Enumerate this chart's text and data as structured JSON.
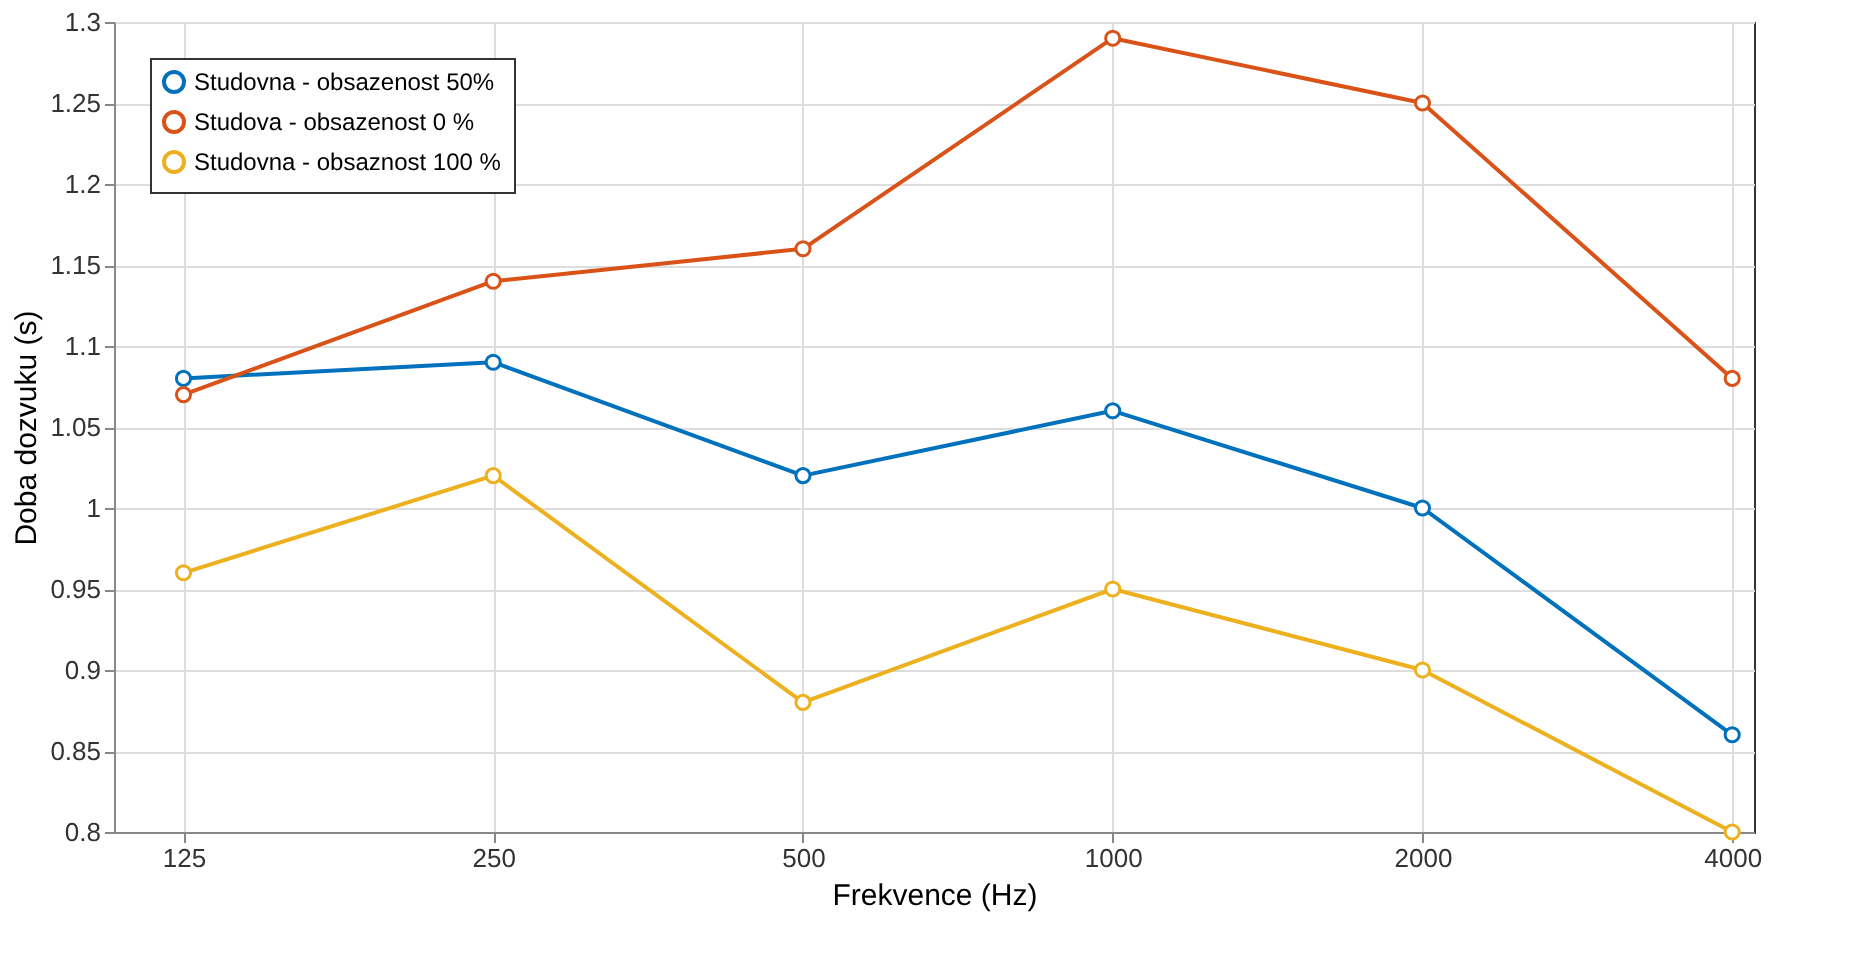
{
  "chart_data": {
    "type": "line",
    "xlabel": "Frekvence (Hz)",
    "ylabel": "Doba dozvuku (s)",
    "x": [
      125,
      250,
      500,
      1000,
      2000,
      4000
    ],
    "series": [
      {
        "name": "Studovna - obsazenost 50%",
        "color": "#0072bd",
        "values": [
          1.08,
          1.09,
          1.02,
          1.06,
          1.0,
          0.86
        ]
      },
      {
        "name": "Studova - obsazenost 0 %",
        "color": "#d95319",
        "values": [
          1.07,
          1.14,
          1.16,
          1.29,
          1.25,
          1.08
        ]
      },
      {
        "name": "Studovna - obsaznost 100 %",
        "color": "#edb120",
        "values": [
          0.96,
          1.02,
          0.88,
          0.95,
          0.9,
          0.8
        ]
      }
    ],
    "log": "x",
    "xlim": [
      107,
      4200
    ],
    "xticks": [
      125,
      250,
      500,
      1000,
      2000,
      4000
    ],
    "ylim": [
      0.8,
      1.3
    ],
    "yticks": [
      0.8,
      0.85,
      0.9,
      0.95,
      1,
      1.05,
      1.1,
      1.15,
      1.2,
      1.25,
      1.3
    ],
    "grid": true,
    "legend": "top left",
    "marker": "circle",
    "line_style": "solid"
  }
}
